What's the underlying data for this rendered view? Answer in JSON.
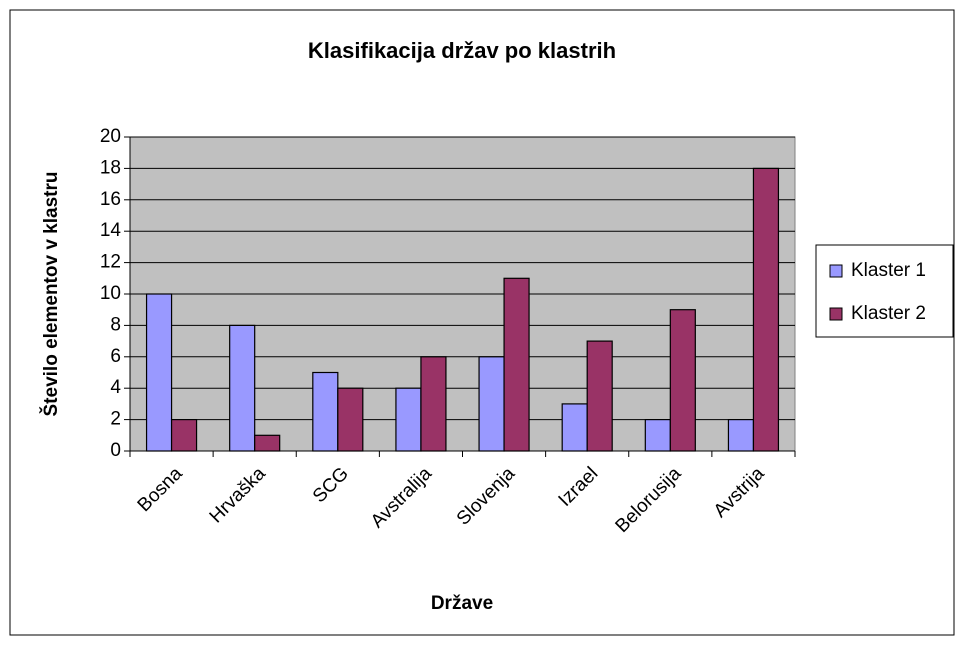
{
  "chart_data": {
    "type": "bar",
    "title": "Klasifikacija držav po klastrih",
    "x_label": "Države",
    "y_label": "Število elementov v klastru",
    "categories": [
      "Bosna",
      "Hrvaška",
      "SCG",
      "Avstralija",
      "Slovenja",
      "Izrael",
      "Belorusija",
      "Avstrija"
    ],
    "series": [
      {
        "name": "Klaster 1",
        "color": "#9999ff",
        "values": [
          10,
          8,
          5,
          4,
          6,
          3,
          2,
          2
        ]
      },
      {
        "name": "Klaster 2",
        "color": "#993366",
        "values": [
          2,
          1,
          4,
          6,
          11,
          7,
          9,
          18
        ]
      }
    ],
    "ylim": [
      0,
      20
    ],
    "yticks": [
      0,
      2,
      4,
      6,
      8,
      10,
      12,
      14,
      16,
      18,
      20
    ],
    "grid": true,
    "legend": "right"
  }
}
